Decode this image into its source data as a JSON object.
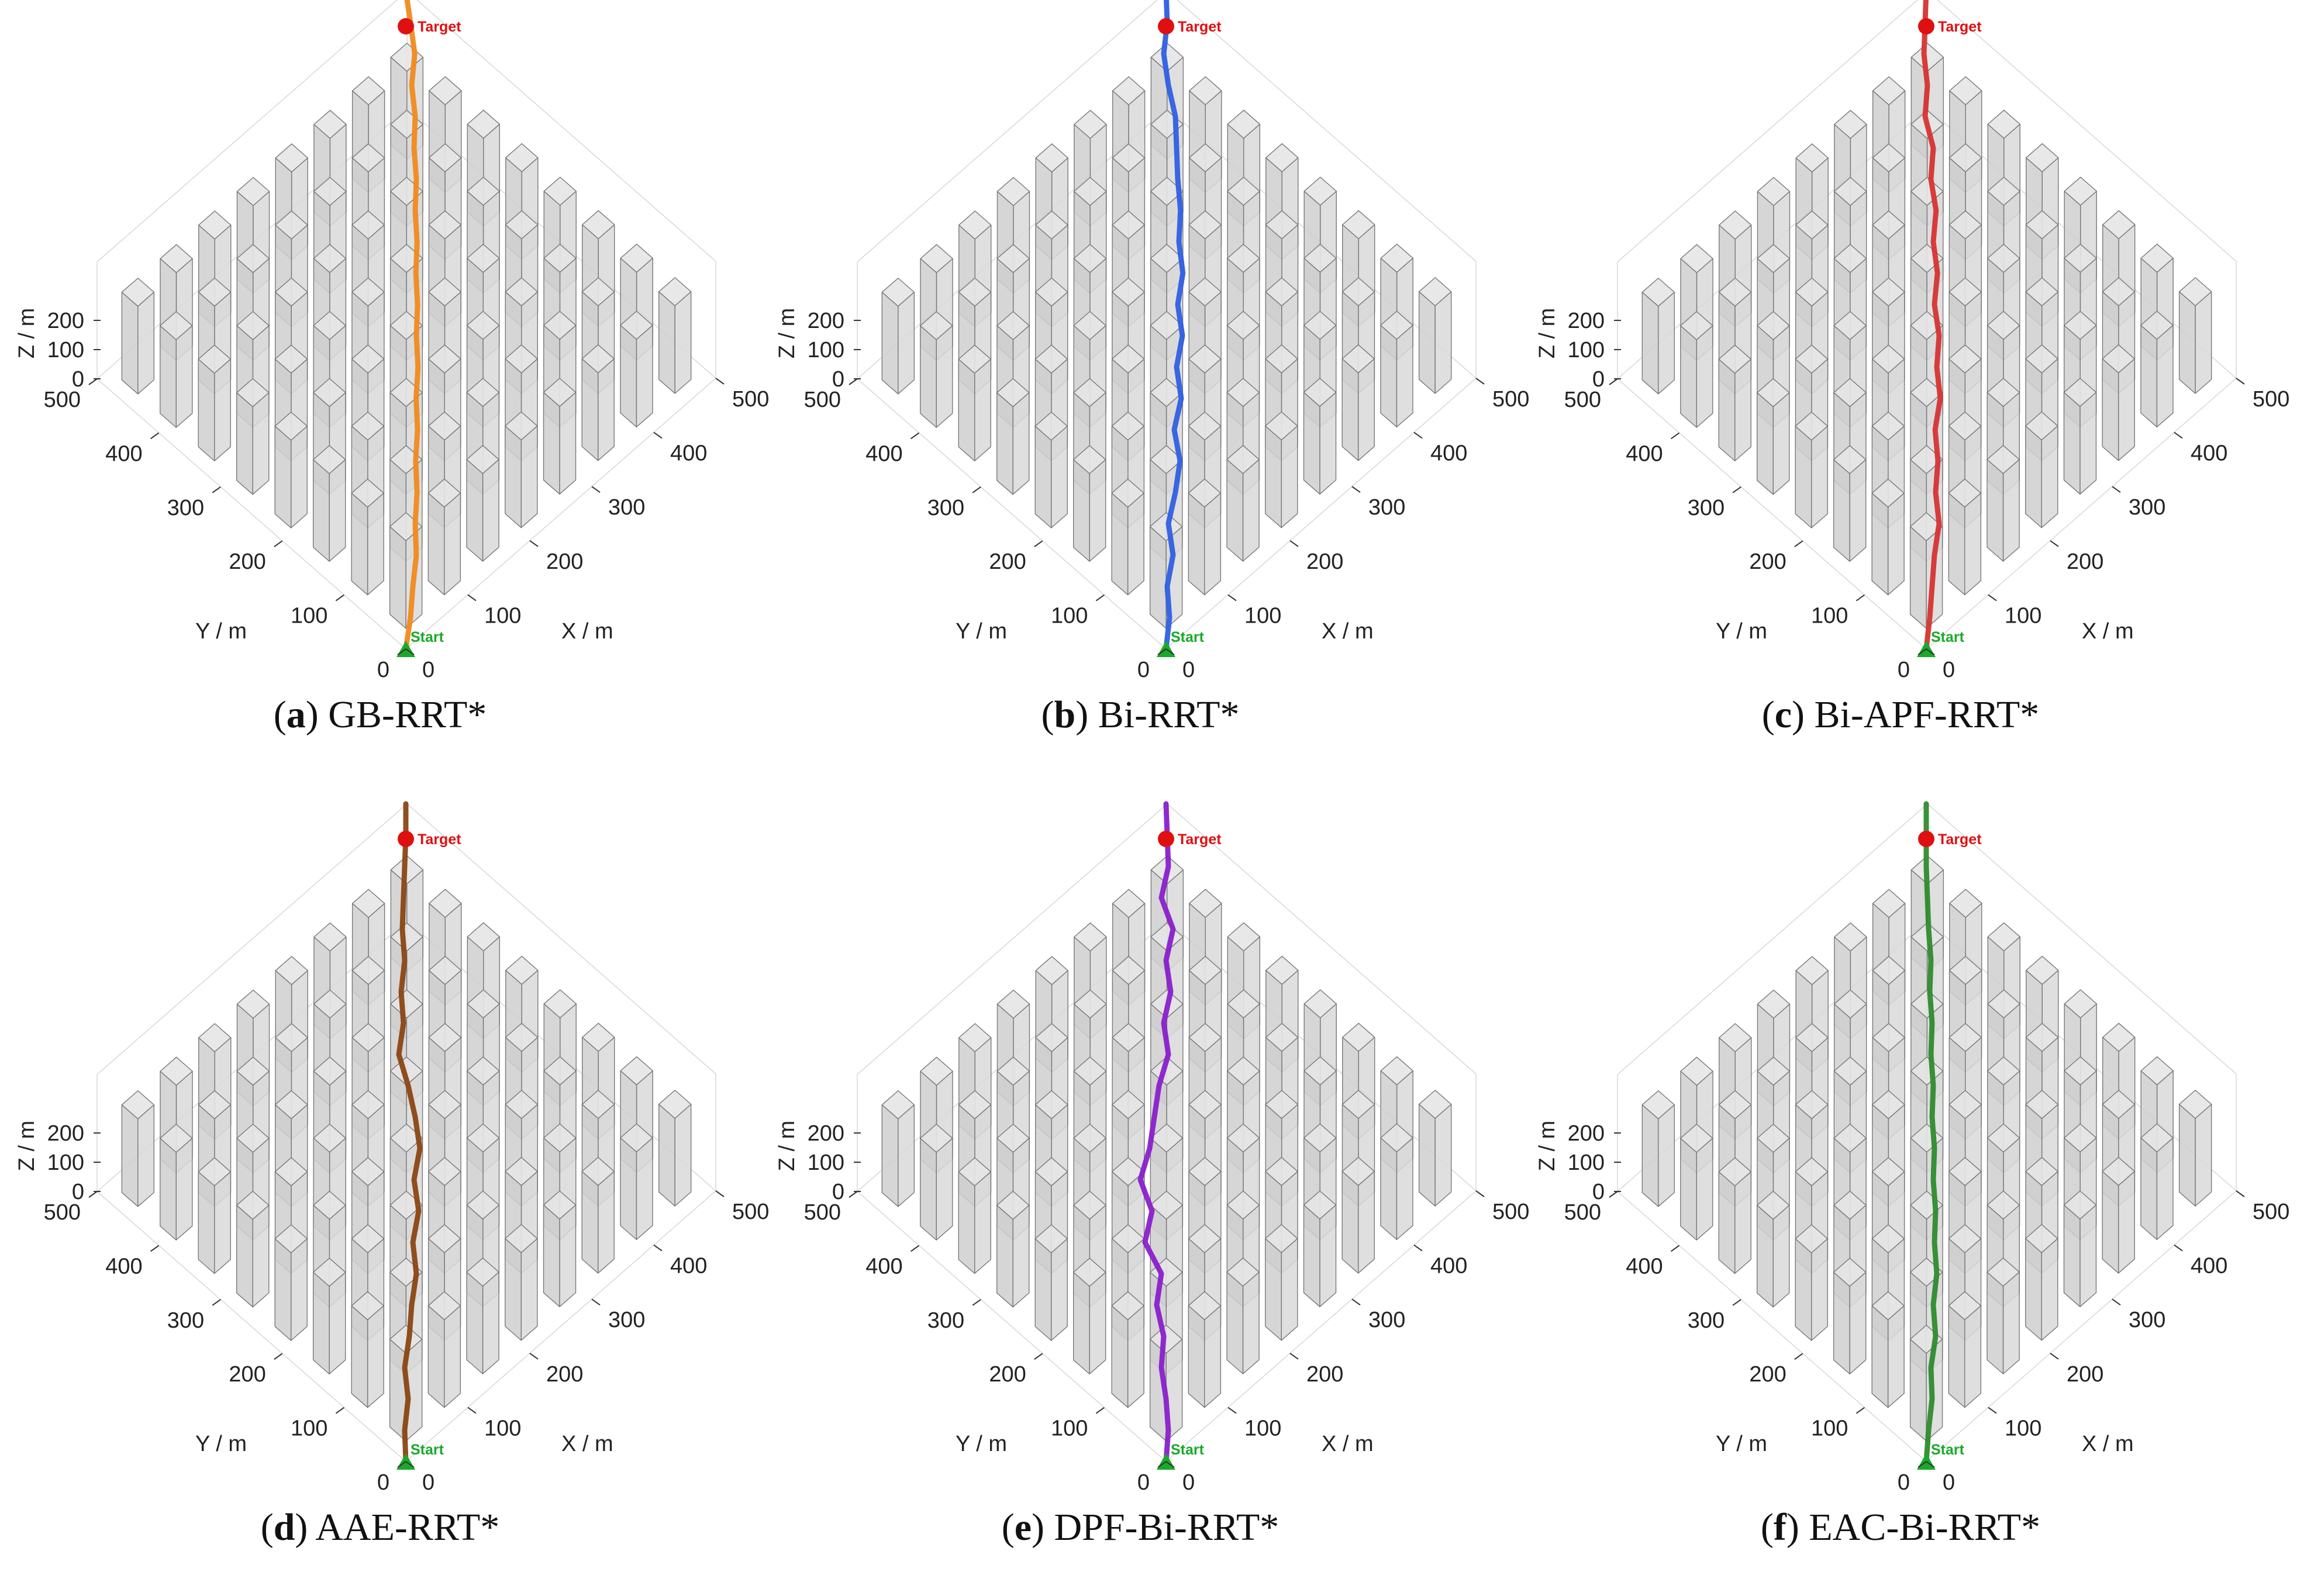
{
  "figure": {
    "panels": [
      {
        "letter": "a",
        "caption": "GB-RRT*",
        "path_color": "#F08A1C",
        "path_x": [
          0.0,
          0.2,
          0.3,
          0.45,
          0.4,
          0.48,
          0.42,
          0.5,
          0.44,
          0.52,
          0.45,
          0.5,
          0.43,
          0.48,
          0.4,
          0.45,
          0.35,
          0.4,
          0.25,
          0.38,
          0.2,
          0.0
        ]
      },
      {
        "letter": "b",
        "caption": "Bi-RRT*",
        "path_color": "#2F5FE0",
        "path_x": [
          0.0,
          0.15,
          0.05,
          0.3,
          0.1,
          0.4,
          0.6,
          0.35,
          0.65,
          0.45,
          0.7,
          0.5,
          0.72,
          0.55,
          0.62,
          0.5,
          0.45,
          0.4,
          0.1,
          -0.1,
          0.05,
          0.0
        ]
      },
      {
        "letter": "c",
        "caption": "Bi-APF-RRT*",
        "path_color": "#D63333",
        "path_x": [
          0.0,
          0.15,
          0.25,
          0.35,
          0.55,
          0.4,
          0.5,
          0.38,
          0.6,
          0.45,
          0.55,
          0.35,
          0.48,
          0.3,
          0.42,
          0.2,
          0.3,
          -0.05,
          0.05,
          -0.1,
          -0.05,
          0.0
        ]
      },
      {
        "letter": "d",
        "caption": "AAE-RRT*",
        "path_color": "#8B4513",
        "path_x": [
          0.0,
          -0.05,
          0.1,
          -0.05,
          0.15,
          0.25,
          0.45,
          0.3,
          0.55,
          0.35,
          0.6,
          0.4,
          0.1,
          -0.3,
          -0.1,
          -0.2,
          -0.05,
          -0.15,
          -0.1,
          -0.05,
          0.0,
          0.0
        ]
      },
      {
        "letter": "e",
        "caption": "DPF-Bi-RRT*",
        "path_color": "#8A1FCC",
        "path_x": [
          0.0,
          0.1,
          0.0,
          -0.2,
          -0.1,
          -0.4,
          -0.2,
          -0.9,
          -0.6,
          -1.1,
          -0.7,
          -0.5,
          -0.3,
          0.1,
          -0.1,
          0.2,
          0.0,
          0.3,
          -0.2,
          0.1,
          0.05,
          0.0
        ]
      },
      {
        "letter": "f",
        "caption": "EAC-Bi-RRT*",
        "path_color": "#2E8B2E",
        "path_x": [
          0.0,
          0.1,
          0.25,
          0.2,
          0.4,
          0.3,
          0.45,
          0.35,
          0.4,
          0.3,
          0.35,
          0.25,
          0.3,
          0.2,
          0.25,
          0.15,
          0.2,
          0.1,
          0.05,
          0.0,
          0.0,
          0.0
        ]
      }
    ],
    "labels": {
      "target": "Target",
      "start": "Start",
      "xlabel": "X / m",
      "ylabel": "Y / m",
      "zlabel": "Z / m",
      "target_color": "#E01010",
      "start_color": "#1AAA2A"
    }
  },
  "chart_data": {
    "type": "scatter",
    "x_ticks": [
      "0",
      "100",
      "200",
      "300",
      "400",
      "500"
    ],
    "y_ticks": [
      "0",
      "100",
      "200",
      "300",
      "400",
      "500"
    ],
    "z_ticks": [
      "0",
      "100",
      "200"
    ],
    "xlim": [
      0,
      500
    ],
    "ylim": [
      0,
      500
    ],
    "zlim": [
      0,
      200
    ],
    "xlabel": "X / m",
    "ylabel": "Y / m",
    "zlabel": "Z / m",
    "start": {
      "label": "Start"
    },
    "target": {
      "label": "Target"
    },
    "series": [
      {
        "name": "GB-RRT*"
      },
      {
        "name": "Bi-RRT*"
      },
      {
        "name": "Bi-APF-RRT*"
      },
      {
        "name": "AAE-RRT*"
      },
      {
        "name": "DPF-Bi-RRT*"
      },
      {
        "name": "EAC-Bi-RRT*"
      }
    ]
  }
}
